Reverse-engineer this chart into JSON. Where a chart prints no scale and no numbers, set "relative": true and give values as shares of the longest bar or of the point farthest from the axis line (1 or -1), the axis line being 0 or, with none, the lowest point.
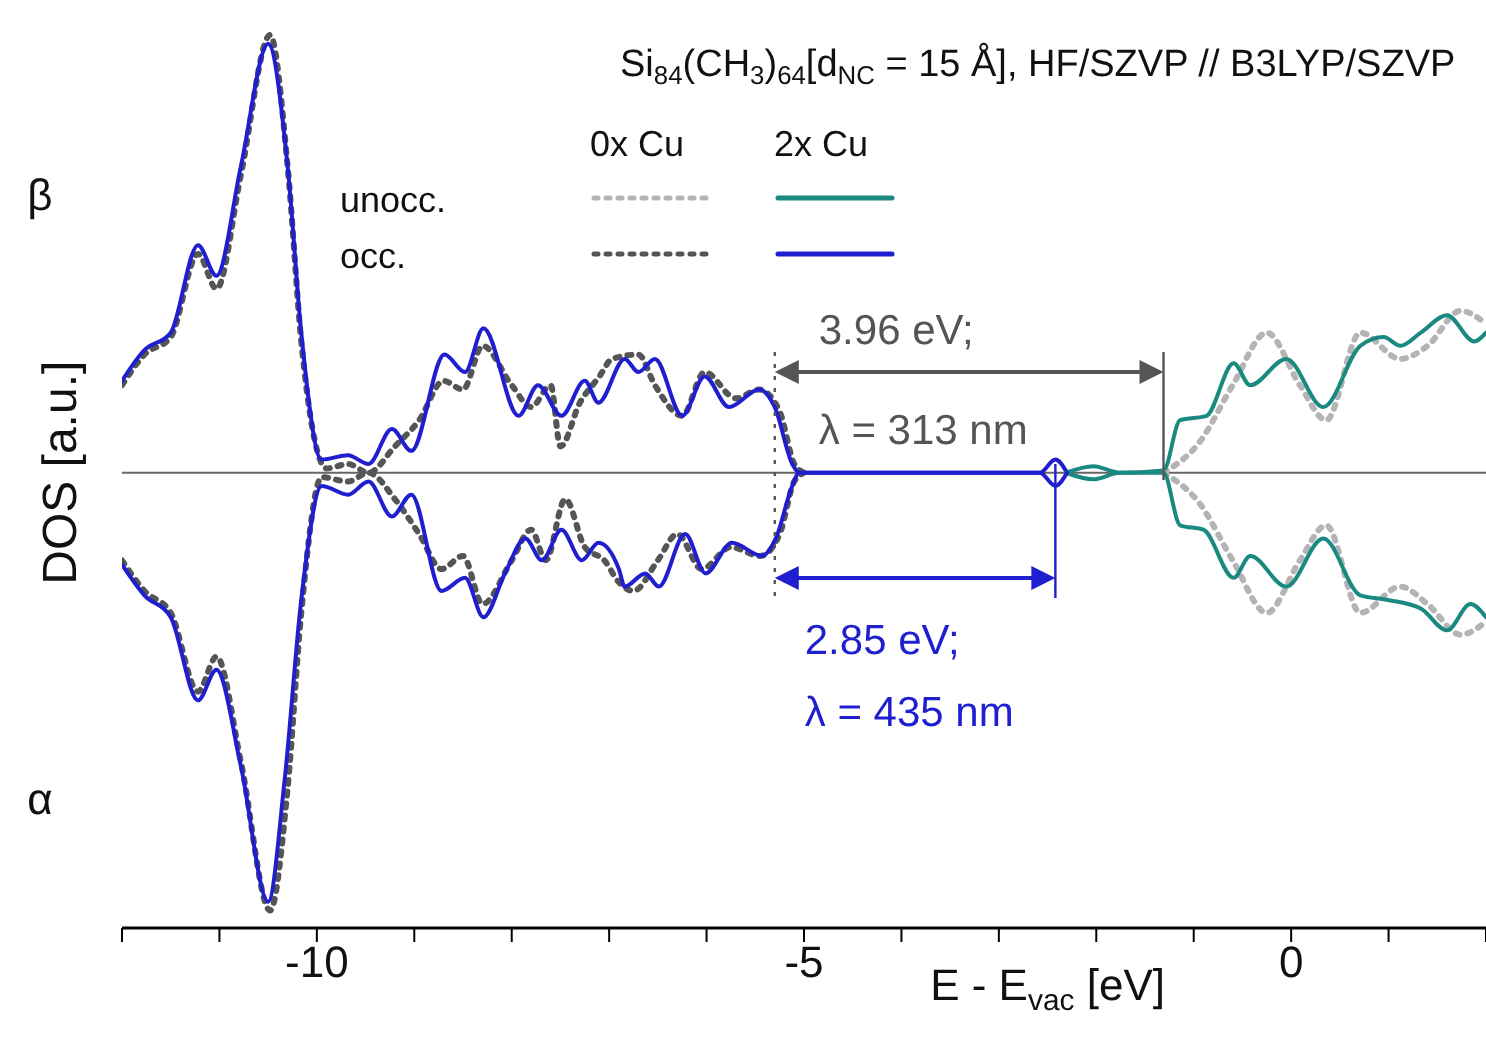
{
  "chart_data": {
    "type": "line",
    "relative": true,
    "title": "Si$_{84}$(CH$_{3}$)$_{64}$[d$_{NC}$ = 15 Å], HF/SZVP // B3LYP/SZVP",
    "xlabel": "E - E$_{vac}$ [eV]",
    "ylabel": "DOS [a.u.]",
    "xlim": [
      -12,
      2
    ],
    "xticks": [
      {
        "value": -12,
        "label": null
      },
      {
        "value": -11,
        "label": null
      },
      -10,
      {
        "value": -9,
        "label": null
      },
      {
        "value": -8,
        "label": null
      },
      {
        "value": -7,
        "label": null
      },
      {
        "value": -6,
        "label": null
      },
      -5,
      {
        "value": -4,
        "label": null
      },
      {
        "value": -3,
        "label": null
      },
      {
        "value": -2,
        "label": null
      },
      {
        "value": -1,
        "label": null
      },
      0,
      {
        "value": 1,
        "label": null
      },
      {
        "value": 2,
        "label": null
      }
    ],
    "marker": "none",
    "annotations": [
      "β",
      "α",
      "0x Cu",
      "2x Cu",
      "unocc.",
      "occ.",
      "3.96 eV;\nλ = 313 nm",
      "2.85 eV;\nλ = 435 nm"
    ],
    "ref_lines": [
      {
        "axis": "x",
        "value": -5.3,
        "color": "#555555",
        "line_style": "dotted"
      },
      {
        "axis": "x",
        "value": -1.31,
        "color": "#555555",
        "line_style": "solid"
      },
      {
        "axis": "x",
        "value": -2.42,
        "color": "#1f1fd0",
        "line_style": "solid"
      }
    ],
    "series": [
      {
        "color": "#b4b4b4",
        "line_style": "dotted",
        "x": [
          -1.31,
          -0.94,
          -0.6,
          -0.25,
          0.09,
          0.36,
          0.71,
          1.12,
          1.4,
          1.74,
          2.0
        ],
        "values": [
          0,
          0.07,
          0.2,
          0.32,
          0.2,
          0.12,
          0.32,
          0.26,
          0.29,
          0.37,
          0.34
        ]
      },
      {
        "color": "#555555",
        "line_style": "dotted",
        "x": [
          -12,
          -11.77,
          -11.5,
          -11.22,
          -11.03,
          -10.78,
          -10.48,
          -10.3,
          -10.16,
          -9.9,
          -9.68,
          -9.47,
          -9.2,
          -8.95,
          -8.7,
          -8.5,
          -8.3,
          -8.0,
          -7.8,
          -7.6,
          -7.5,
          -7.3,
          -7.1,
          -6.97,
          -6.7,
          -6.53,
          -6.25,
          -6.02,
          -5.7,
          -5.46,
          -5.25,
          -5.1,
          -5.0
        ],
        "values": [
          0.2,
          0.27,
          0.31,
          0.5,
          0.42,
          0.68,
          1.0,
          0.7,
          0.3,
          0.01,
          0.02,
          0,
          0.06,
          0.12,
          0.21,
          0.19,
          0.29,
          0.2,
          0.15,
          0.2,
          0.06,
          0.16,
          0.22,
          0.26,
          0.27,
          0.2,
          0.13,
          0.23,
          0.17,
          0.19,
          0.14,
          0.02,
          0
        ]
      },
      {
        "color": "#1a8a80",
        "line_style": "solid",
        "x": [
          -2.31,
          -2.03,
          -1.76,
          -1.31,
          -1.14,
          -0.87,
          -0.59,
          -0.42,
          -0.05,
          0.33,
          0.71,
          0.95,
          1.12,
          1.33,
          1.6,
          1.88,
          2.0
        ],
        "values": [
          0,
          0.015,
          0,
          0.005,
          0.12,
          0.13,
          0.25,
          0.2,
          0.26,
          0.15,
          0.29,
          0.31,
          0.29,
          0.32,
          0.36,
          0.3,
          0.32
        ]
      },
      {
        "color": "#1f1fd0",
        "line_style": "solid",
        "x": [
          -12,
          -11.77,
          -11.5,
          -11.22,
          -11.03,
          -10.78,
          -10.5,
          -10.3,
          -10.16,
          -9.95,
          -9.68,
          -9.47,
          -9.23,
          -9.03,
          -8.69,
          -8.48,
          -8.29,
          -7.93,
          -7.73,
          -7.49,
          -7.25,
          -7.11,
          -6.84,
          -6.7,
          -6.53,
          -6.25,
          -6.02,
          -5.77,
          -5.46,
          -5.3,
          -5.12,
          -5.05,
          -2.58,
          -2.42,
          -2.3
        ],
        "values": [
          0.21,
          0.28,
          0.32,
          0.52,
          0.45,
          0.7,
          0.98,
          0.7,
          0.32,
          0.03,
          0.04,
          0.02,
          0.1,
          0.05,
          0.27,
          0.23,
          0.33,
          0.13,
          0.2,
          0.13,
          0.21,
          0.16,
          0.26,
          0.23,
          0.26,
          0.13,
          0.22,
          0.15,
          0.19,
          0.15,
          0.02,
          0,
          0,
          0.03,
          0
        ]
      },
      {
        "color": "#b4b4b4",
        "line_style": "dotted",
        "x": [
          -1.31,
          -0.94,
          -0.6,
          -0.25,
          0.09,
          0.36,
          0.71,
          1.12,
          1.4,
          1.74,
          2.0
        ],
        "values": [
          0,
          -0.07,
          -0.2,
          -0.32,
          -0.2,
          -0.12,
          -0.32,
          -0.26,
          -0.3,
          -0.37,
          -0.34
        ]
      },
      {
        "color": "#555555",
        "line_style": "dotted",
        "x": [
          -12,
          -11.77,
          -11.5,
          -11.22,
          -11.03,
          -10.78,
          -10.48,
          -10.3,
          -10.16,
          -9.95,
          -9.68,
          -9.47,
          -9.2,
          -8.95,
          -8.72,
          -8.5,
          -8.3,
          -8.0,
          -7.8,
          -7.65,
          -7.45,
          -7.25,
          -7.05,
          -6.9,
          -6.75,
          -6.5,
          -6.3,
          -6.05,
          -5.75,
          -5.45,
          -5.25,
          -5.1,
          -5.0
        ],
        "values": [
          -0.2,
          -0.27,
          -0.32,
          -0.5,
          -0.42,
          -0.66,
          -1.0,
          -0.72,
          -0.32,
          -0.01,
          -0.02,
          0,
          -0.06,
          -0.14,
          -0.22,
          -0.19,
          -0.3,
          -0.2,
          -0.13,
          -0.2,
          -0.06,
          -0.17,
          -0.2,
          -0.25,
          -0.27,
          -0.2,
          -0.14,
          -0.22,
          -0.17,
          -0.19,
          -0.14,
          -0.02,
          0
        ]
      },
      {
        "color": "#1a8a80",
        "line_style": "solid",
        "x": [
          -2.31,
          -2.03,
          -1.76,
          -1.31,
          -1.14,
          -0.9,
          -0.59,
          -0.42,
          -0.05,
          0.33,
          0.71,
          0.98,
          1.33,
          1.6,
          1.84,
          2.0
        ],
        "values": [
          0,
          -0.015,
          0,
          0,
          -0.12,
          -0.13,
          -0.24,
          -0.19,
          -0.26,
          -0.15,
          -0.28,
          -0.29,
          -0.31,
          -0.36,
          -0.3,
          -0.33
        ]
      },
      {
        "color": "#1f1fd0",
        "line_style": "solid",
        "x": [
          -12,
          -11.77,
          -11.5,
          -11.22,
          -11.03,
          -10.78,
          -10.5,
          -10.33,
          -10.16,
          -9.95,
          -9.68,
          -9.47,
          -9.23,
          -9.03,
          -8.72,
          -8.48,
          -8.29,
          -8.07,
          -7.86,
          -7.69,
          -7.49,
          -7.28,
          -7.11,
          -6.9,
          -6.84,
          -6.63,
          -6.49,
          -6.22,
          -6.01,
          -5.74,
          -5.43,
          -5.29,
          -5.12,
          -5.05,
          -2.58,
          -2.42,
          -2.3
        ],
        "values": [
          -0.21,
          -0.28,
          -0.33,
          -0.52,
          -0.45,
          -0.67,
          -0.98,
          -0.7,
          -0.29,
          -0.03,
          -0.05,
          -0.02,
          -0.1,
          -0.05,
          -0.27,
          -0.24,
          -0.33,
          -0.23,
          -0.15,
          -0.2,
          -0.13,
          -0.2,
          -0.16,
          -0.22,
          -0.26,
          -0.23,
          -0.26,
          -0.14,
          -0.23,
          -0.16,
          -0.19,
          -0.15,
          -0.03,
          0,
          0,
          -0.03,
          0
        ]
      }
    ]
  }
}
